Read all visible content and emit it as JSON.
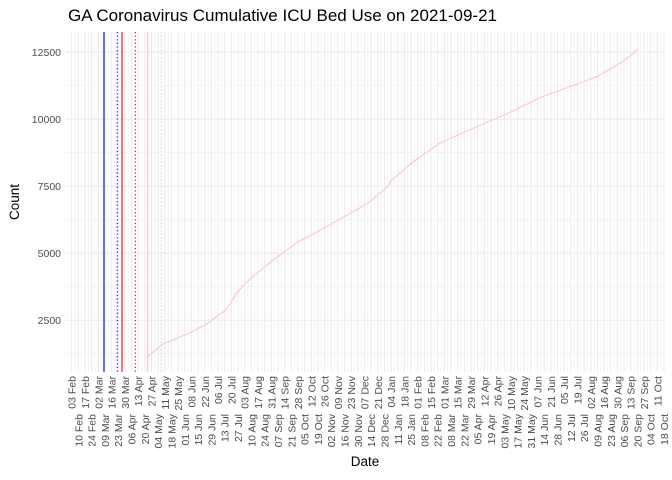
{
  "chart_data": {
    "type": "line",
    "title": "GA Coronavirus Cumulative ICU Bed Use on 2021-09-21",
    "xlabel": "Date",
    "ylabel": "Count",
    "xlim": [
      "2020-01-27",
      "2021-10-18"
    ],
    "ylim": [
      570,
      13250
    ],
    "y_ticks": [
      2500,
      5000,
      7500,
      10000,
      12500
    ],
    "y_tick_labels": [
      "2500",
      "5000",
      "7500",
      "10000",
      "12500"
    ],
    "grid": true,
    "x_ticks": [
      "2020-02-03",
      "2020-02-10",
      "2020-02-17",
      "2020-02-24",
      "2020-03-02",
      "2020-03-09",
      "2020-03-16",
      "2020-03-23",
      "2020-03-30",
      "2020-04-06",
      "2020-04-13",
      "2020-04-20",
      "2020-04-27",
      "2020-05-04",
      "2020-05-11",
      "2020-05-18",
      "2020-05-25",
      "2020-06-01",
      "2020-06-08",
      "2020-06-15",
      "2020-06-22",
      "2020-06-29",
      "2020-07-06",
      "2020-07-13",
      "2020-07-20",
      "2020-07-27",
      "2020-08-03",
      "2020-08-10",
      "2020-08-17",
      "2020-08-24",
      "2020-08-31",
      "2020-09-07",
      "2020-09-14",
      "2020-09-21",
      "2020-09-28",
      "2020-10-05",
      "2020-10-12",
      "2020-10-19",
      "2020-10-26",
      "2020-11-02",
      "2020-11-09",
      "2020-11-16",
      "2020-11-23",
      "2020-11-30",
      "2020-12-07",
      "2020-12-14",
      "2020-12-21",
      "2020-12-28",
      "2021-01-04",
      "2021-01-11",
      "2021-01-18",
      "2021-01-25",
      "2021-02-01",
      "2021-02-08",
      "2021-02-15",
      "2021-02-22",
      "2021-03-01",
      "2021-03-08",
      "2021-03-15",
      "2021-03-22",
      "2021-03-29",
      "2021-04-05",
      "2021-04-12",
      "2021-04-19",
      "2021-04-26",
      "2021-05-03",
      "2021-05-10",
      "2021-05-17",
      "2021-05-24",
      "2021-05-31",
      "2021-06-07",
      "2021-06-14",
      "2021-06-21",
      "2021-06-28",
      "2021-07-05",
      "2021-07-12",
      "2021-07-19",
      "2021-07-26",
      "2021-08-02",
      "2021-08-09",
      "2021-08-16",
      "2021-08-23",
      "2021-08-30",
      "2021-09-06",
      "2021-09-13",
      "2021-09-20",
      "2021-09-27",
      "2021-10-04",
      "2021-10-11",
      "2021-10-18"
    ],
    "x_tick_labels": [
      "03 Feb",
      "10 Feb",
      "17 Feb",
      "24 Feb",
      "02 Mar",
      "09 Mar",
      "16 Mar",
      "23 Mar",
      "30 Mar",
      "06 Apr",
      "13 Apr",
      "20 Apr",
      "27 Apr",
      "04 May",
      "11 May",
      "18 May",
      "25 May",
      "01 Jun",
      "08 Jun",
      "15 Jun",
      "22 Jun",
      "29 Jun",
      "06 Jul",
      "13 Jul",
      "20 Jul",
      "27 Jul",
      "03 Aug",
      "10 Aug",
      "17 Aug",
      "24 Aug",
      "31 Aug",
      "07 Sep",
      "14 Sep",
      "21 Sep",
      "28 Sep",
      "05 Oct",
      "12 Oct",
      "19 Oct",
      "26 Oct",
      "02 Nov",
      "09 Nov",
      "16 Nov",
      "23 Nov",
      "30 Nov",
      "07 Dec",
      "14 Dec",
      "21 Dec",
      "28 Dec",
      "04 Jan",
      "11 Jan",
      "18 Jan",
      "25 Jan",
      "01 Feb",
      "08 Feb",
      "15 Feb",
      "22 Feb",
      "01 Mar",
      "08 Mar",
      "15 Mar",
      "22 Mar",
      "29 Mar",
      "05 Apr",
      "12 Apr",
      "19 Apr",
      "26 Apr",
      "03 May",
      "10 May",
      "17 May",
      "24 May",
      "31 May",
      "07 Jun",
      "14 Jun",
      "21 Jun",
      "28 Jun",
      "05 Jul",
      "12 Jul",
      "19 Jul",
      "26 Jul",
      "02 Aug",
      "09 Aug",
      "16 Aug",
      "23 Aug",
      "30 Aug",
      "06 Sep",
      "13 Sep",
      "20 Sep",
      "27 Sep",
      "04 Oct",
      "11 Oct",
      "18 Oct"
    ],
    "series": [
      {
        "color": "#FFC0CB",
        "x": [
          "2020-04-22",
          "2020-05-08",
          "2020-06-06",
          "2020-06-24",
          "2020-07-15",
          "2020-07-26",
          "2020-08-09",
          "2020-08-30",
          "2020-09-27",
          "2020-10-21",
          "2020-11-19",
          "2020-12-10",
          "2020-12-31",
          "2021-01-03",
          "2021-01-27",
          "2021-02-25",
          "2021-03-31",
          "2021-05-06",
          "2021-06-10",
          "2021-07-19",
          "2021-08-09",
          "2021-09-05",
          "2021-09-21"
        ],
        "y": [
          1115,
          1590,
          2030,
          2365,
          2905,
          3550,
          4055,
          4660,
          5405,
          5845,
          6420,
          6860,
          7470,
          7670,
          8410,
          9120,
          9660,
          10200,
          10810,
          11320,
          11590,
          12160,
          12600
        ]
      }
    ],
    "reference_lines": [
      {
        "date": "2020-03-08",
        "color": "#0000FF",
        "style": "solid"
      },
      {
        "date": "2020-03-22",
        "color": "#0000FF",
        "style": "dotted"
      },
      {
        "date": "2020-03-27",
        "color": "#FF0000",
        "style": "solid"
      },
      {
        "date": "2020-04-10",
        "color": "#FF0000",
        "style": "dotted"
      },
      {
        "date": "2020-04-23",
        "color": "#FFC0CB",
        "style": "solid"
      },
      {
        "date": "2020-05-07",
        "color": "#FFC0CB",
        "style": "dotted"
      }
    ]
  }
}
